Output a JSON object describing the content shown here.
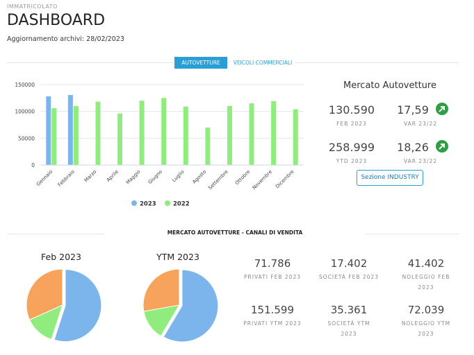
{
  "header": {
    "section": "IMMATRICOLATO",
    "title": "DASHBOARD",
    "update": "Aggiornamento archivi: 28/02/2023"
  },
  "tabs": [
    "AUTOVETTURE",
    "VEICOLI COMMERCIALI"
  ],
  "chart_data": [
    {
      "type": "bar",
      "categories": [
        "Gennaio",
        "Febbraio",
        "Marzo",
        "Aprile",
        "Maggio",
        "Giugno",
        "Luglio",
        "Agosto",
        "Settembre",
        "Ottobre",
        "Novembre",
        "Dicembre"
      ],
      "series": [
        {
          "name": "2023",
          "color": "#7cb5ec",
          "values": [
            128000,
            130590,
            null,
            null,
            null,
            null,
            null,
            null,
            null,
            null,
            null,
            null
          ]
        },
        {
          "name": "2022",
          "color": "#90ed7d",
          "values": [
            106000,
            110000,
            118000,
            96000,
            120000,
            125000,
            109000,
            70000,
            110000,
            115000,
            119000,
            104000
          ]
        }
      ],
      "ylim": [
        0,
        150000
      ],
      "yticks": [
        0,
        50000,
        100000,
        150000
      ],
      "grid": true,
      "legend": "bottom"
    },
    {
      "type": "pie",
      "title": "Feb 2023",
      "values": [
        71786,
        17402,
        41402
      ],
      "colors": [
        "#7cb5ec",
        "#90ed7d",
        "#f7a35c"
      ]
    },
    {
      "type": "pie",
      "title": "YTM 2023",
      "values": [
        151599,
        35361,
        72039
      ],
      "colors": [
        "#7cb5ec",
        "#90ed7d",
        "#f7a35c"
      ]
    }
  ],
  "market": {
    "title": "Mercato Autovetture",
    "kpis": [
      {
        "value": "130.590",
        "label": "FEB 2023"
      },
      {
        "value": "17,59",
        "label": "VAR 23/22"
      },
      {
        "value": "258.999",
        "label": "YTD 2023"
      },
      {
        "value": "18,26",
        "label": "VAR 23/22"
      }
    ],
    "button": "Sezione INDUSTRY"
  },
  "channels": {
    "title": "MERCATO AUTOVETTURE - CANALI DI VENDITA",
    "kpis": [
      {
        "value": "71.786",
        "label": "PRIVATI FEB 2023"
      },
      {
        "value": "17.402",
        "label": "SOCIETÀ FEB 2023"
      },
      {
        "value": "41.402",
        "label": "NOLEGGIO FEB 2023"
      },
      {
        "value": "151.599",
        "label": "PRIVATI YTM 2023"
      },
      {
        "value": "35.361",
        "label": "SOCIETÀ YTM 2023"
      },
      {
        "value": "72.039",
        "label": "NOLEGGIO YTM 2023"
      }
    ]
  }
}
